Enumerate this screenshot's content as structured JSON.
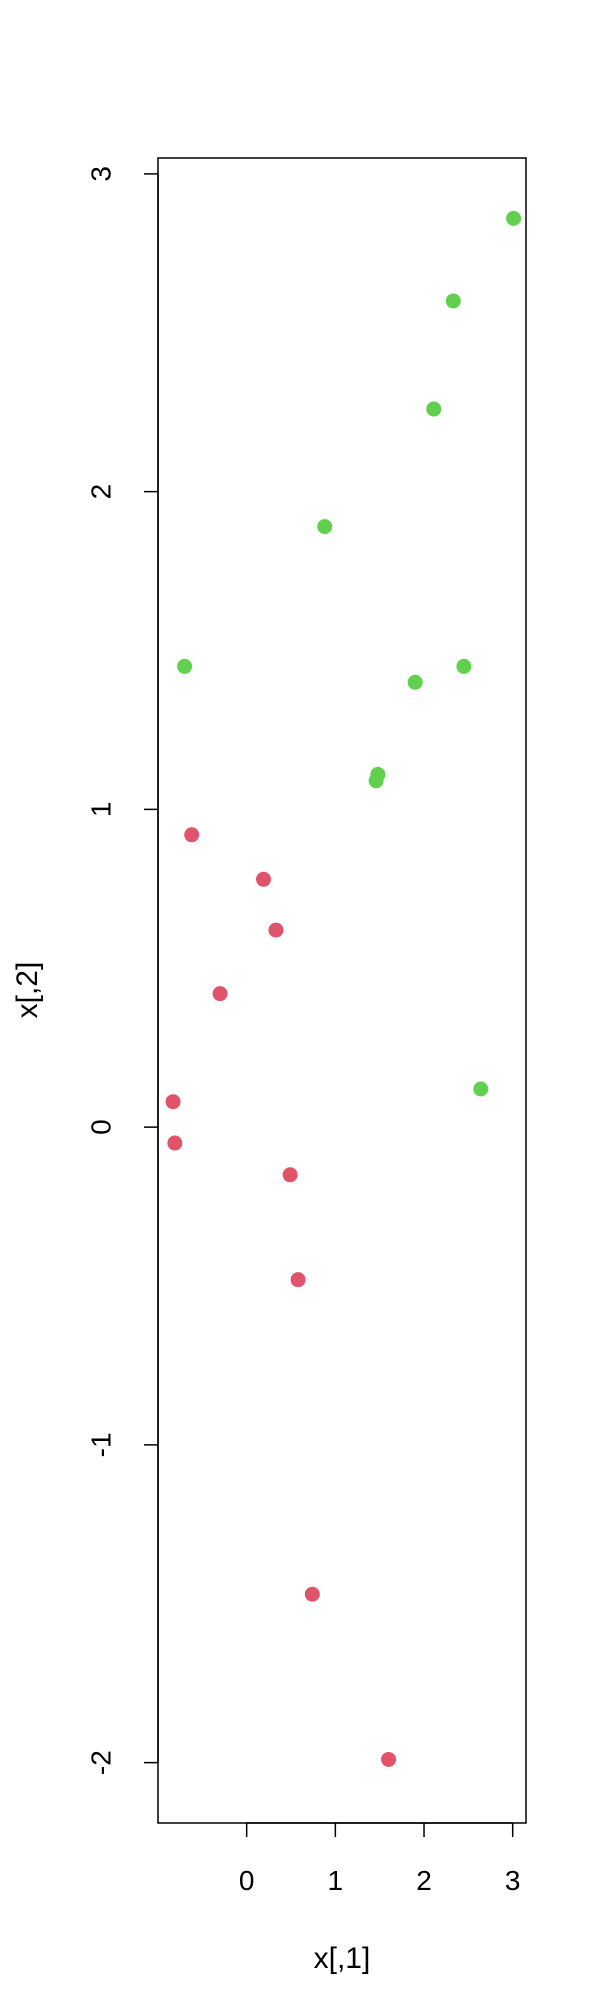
{
  "chart_data": {
    "type": "scatter",
    "xlabel": "x[,1]",
    "ylabel": "x[,2]",
    "xlim": [
      -1.0,
      3.15
    ],
    "ylim": [
      -2.19,
      3.05
    ],
    "x_ticks": [
      {
        "value": 0,
        "label": "0"
      },
      {
        "value": 1,
        "label": "1"
      },
      {
        "value": 2,
        "label": "2"
      },
      {
        "value": 3,
        "label": "3"
      }
    ],
    "y_ticks": [
      {
        "value": -2,
        "label": "-2"
      },
      {
        "value": -1,
        "label": "-1"
      },
      {
        "value": 0,
        "label": "0"
      },
      {
        "value": 1,
        "label": "1"
      },
      {
        "value": 2,
        "label": "2"
      },
      {
        "value": 3,
        "label": "3"
      }
    ],
    "grid": false,
    "series": [
      {
        "color": "#DF536B",
        "points": [
          {
            "x": -0.62,
            "y": 0.92
          },
          {
            "x": 0.19,
            "y": 0.78
          },
          {
            "x": 0.33,
            "y": 0.62
          },
          {
            "x": -0.3,
            "y": 0.42
          },
          {
            "x": -0.83,
            "y": 0.08
          },
          {
            "x": -0.81,
            "y": -0.05
          },
          {
            "x": 0.49,
            "y": -0.15
          },
          {
            "x": 0.58,
            "y": -0.48
          },
          {
            "x": 0.74,
            "y": -1.47
          },
          {
            "x": 1.6,
            "y": -1.99
          }
        ]
      },
      {
        "color": "#61D04F",
        "points": [
          {
            "x": 3.01,
            "y": 2.86
          },
          {
            "x": 2.33,
            "y": 2.6
          },
          {
            "x": 2.11,
            "y": 2.26
          },
          {
            "x": 0.88,
            "y": 1.89
          },
          {
            "x": -0.7,
            "y": 1.45
          },
          {
            "x": 2.45,
            "y": 1.45
          },
          {
            "x": 1.9,
            "y": 1.4
          },
          {
            "x": 1.48,
            "y": 1.11
          },
          {
            "x": 1.46,
            "y": 1.09
          },
          {
            "x": 2.64,
            "y": 0.12
          }
        ]
      }
    ]
  }
}
